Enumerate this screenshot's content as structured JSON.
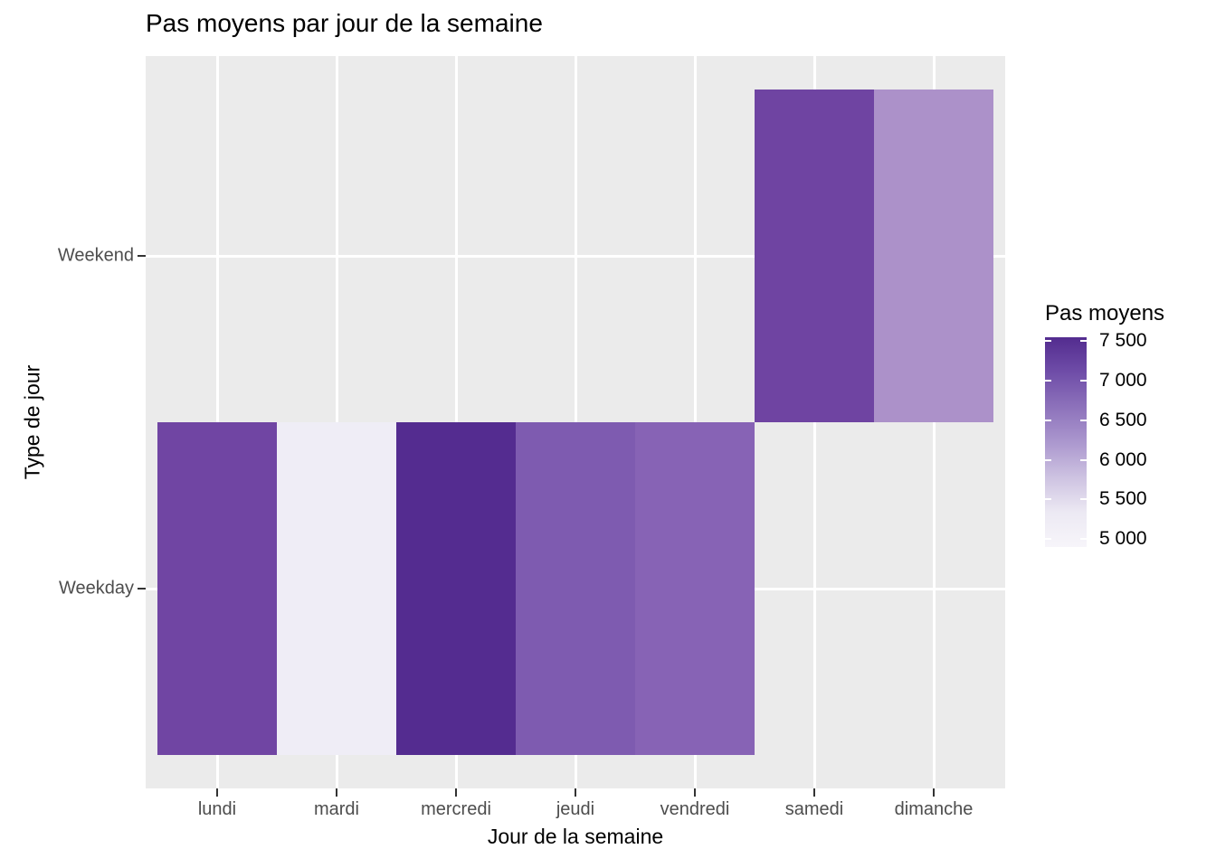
{
  "title": "Pas moyens par jour de la semaine",
  "axes": {
    "x": {
      "title": "Jour de la semaine",
      "categories": [
        "lundi",
        "mardi",
        "mercredi",
        "jeudi",
        "vendredi",
        "samedi",
        "dimanche"
      ]
    },
    "y": {
      "title": "Type de jour",
      "categories": [
        "Weekend",
        "Weekday"
      ]
    }
  },
  "legend": {
    "title": "Pas moyens",
    "tick_labels": [
      "7 500",
      "7 000",
      "6 500",
      "6 000",
      "5 500",
      "5 000"
    ],
    "scale_min": 4900,
    "scale_max": 7550,
    "gradient_stops": [
      "#532c8f",
      "#6f4da8",
      "#8d72bb",
      "#ab97ce",
      "#cdc2e1",
      "#ece9f3",
      "#f7f5fa"
    ]
  },
  "colors": {
    "background": "#ffffff",
    "panel_bg": "#ebebeb",
    "gridline": "#ffffff",
    "tick_mark": "#333333",
    "tick_label": "#4d4d4d",
    "text": "#000000"
  },
  "chart_data": {
    "type": "heatmap",
    "title": "Pas moyens par jour de la semaine",
    "xlabel": "Jour de la semaine",
    "ylabel": "Type de jour",
    "x_categories": [
      "lundi",
      "mardi",
      "mercredi",
      "jeudi",
      "vendredi",
      "samedi",
      "dimanche"
    ],
    "y_categories": [
      "Weekend",
      "Weekday"
    ],
    "legend_title": "Pas moyens",
    "color_scale": {
      "palette": "Purples",
      "direction": "light-to-dark",
      "tick_values": [
        7500,
        7000,
        6500,
        6000,
        5500,
        5000
      ]
    },
    "values_estimated": true,
    "tiles": [
      {
        "x": "lundi",
        "y": "Weekday",
        "value": 7000,
        "fill": "#7045a3"
      },
      {
        "x": "mardi",
        "y": "Weekday",
        "value": 4950,
        "fill": "#efedf6"
      },
      {
        "x": "mercredi",
        "y": "Weekday",
        "value": 7550,
        "fill": "#542c90"
      },
      {
        "x": "jeudi",
        "y": "Weekday",
        "value": 6650,
        "fill": "#7e5bb0"
      },
      {
        "x": "vendredi",
        "y": "Weekday",
        "value": 6550,
        "fill": "#8763b5"
      },
      {
        "x": "samedi",
        "y": "Weekend",
        "value": 7050,
        "fill": "#6f44a2"
      },
      {
        "x": "dimanche",
        "y": "Weekend",
        "value": 6000,
        "fill": "#ac91c9"
      }
    ]
  }
}
